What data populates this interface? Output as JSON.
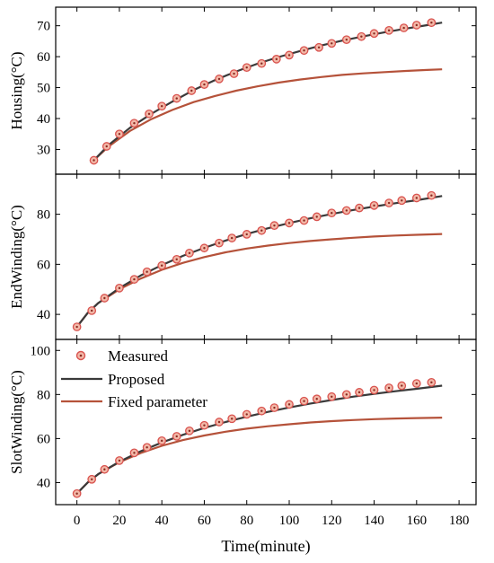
{
  "chart_data": {
    "type": "line",
    "xlabel": "Time(minute)",
    "x_ticks": [
      "0",
      "20",
      "40",
      "60",
      "80",
      "100",
      "120",
      "140",
      "160",
      "180"
    ],
    "xlim": [
      -10,
      188
    ],
    "colors": {
      "measured": "#d9534f",
      "measured_fill": "#f2b8a8",
      "proposed": "#3a3a3a",
      "fixed": "#b5523a"
    },
    "legend": {
      "placement": "top-left of bottom panel",
      "measured": "Measured",
      "proposed": "Proposed",
      "fixed": "Fixed parameter"
    },
    "panels": [
      {
        "ylabel": "Housing(°C)",
        "ylim": [
          22,
          76
        ],
        "y_ticks": [
          30,
          40,
          50,
          60,
          70
        ],
        "series": [
          {
            "name": "Measured",
            "kind": "scatter",
            "x": [
              8,
              14,
              20,
              27,
              34,
              40,
              47,
              54,
              60,
              67,
              74,
              80,
              87,
              94,
              100,
              107,
              114,
              120,
              127,
              134,
              140,
              147,
              154,
              160,
              167
            ],
            "y": [
              26.5,
              31,
              35,
              38.5,
              41.5,
              44,
              46.5,
              49,
              51,
              52.8,
              54.5,
              56.5,
              57.8,
              59.2,
              60.5,
              62,
              63,
              64.3,
              65.5,
              66.5,
              67.5,
              68.5,
              69.3,
              70.2,
              71
            ]
          },
          {
            "name": "Proposed",
            "kind": "line",
            "x": [
              8,
              15,
              25,
              35,
              45,
              55,
              65,
              75,
              85,
              95,
              105,
              115,
              125,
              135,
              145,
              155,
              165,
              172
            ],
            "y": [
              26.5,
              31.5,
              37,
              41.5,
              45.5,
              49.2,
              52.4,
              55.2,
              57.7,
              59.9,
              61.8,
              63.6,
              65.2,
              66.6,
              67.9,
              69.1,
              70.2,
              71
            ]
          },
          {
            "name": "Fixed parameter",
            "kind": "line",
            "x": [
              8,
              15,
              25,
              35,
              45,
              55,
              65,
              75,
              85,
              95,
              105,
              115,
              125,
              135,
              145,
              155,
              165,
              172
            ],
            "y": [
              26.5,
              31,
              36,
              39.8,
              42.8,
              45.3,
              47.3,
              49,
              50.4,
              51.6,
              52.6,
              53.4,
              54.1,
              54.6,
              55,
              55.4,
              55.7,
              55.9
            ]
          }
        ]
      },
      {
        "ylabel": "EndWinding(°C)",
        "ylim": [
          30,
          96
        ],
        "y_ticks": [
          40,
          60,
          80
        ],
        "series": [
          {
            "name": "Measured",
            "kind": "scatter",
            "x": [
              0,
              7,
              13,
              20,
              27,
              33,
              40,
              47,
              53,
              60,
              67,
              73,
              80,
              87,
              93,
              100,
              107,
              113,
              120,
              127,
              133,
              140,
              147,
              153,
              160,
              167
            ],
            "y": [
              35,
              41.5,
              46.5,
              50.5,
              54,
              57,
              59.5,
              62,
              64.5,
              66.5,
              68.5,
              70.5,
              72,
              73.5,
              75.5,
              76.5,
              77.5,
              79,
              80.5,
              81.5,
              82.5,
              83.5,
              84.5,
              85.5,
              86.5,
              87.5
            ]
          },
          {
            "name": "Proposed",
            "kind": "line",
            "x": [
              0,
              5,
              10,
              20,
              30,
              40,
              50,
              60,
              70,
              80,
              90,
              100,
              110,
              120,
              130,
              140,
              150,
              160,
              172
            ],
            "y": [
              35,
              40.5,
              44.5,
              50.5,
              55.5,
              59.7,
              63.4,
              66.6,
              69.5,
              72.1,
              74.4,
              76.5,
              78.4,
              80.1,
              81.7,
              83.1,
              84.4,
              85.6,
              87.3
            ]
          },
          {
            "name": "Fixed parameter",
            "kind": "line",
            "x": [
              0,
              5,
              10,
              20,
              30,
              40,
              50,
              60,
              70,
              80,
              90,
              100,
              110,
              120,
              130,
              140,
              150,
              160,
              172
            ],
            "y": [
              35,
              40.5,
              44.5,
              50,
              54.3,
              57.8,
              60.6,
              62.9,
              64.8,
              66.3,
              67.5,
              68.5,
              69.3,
              70,
              70.6,
              71.1,
              71.5,
              71.8,
              72.1
            ]
          }
        ]
      },
      {
        "ylabel": "SlotWinding(°C)",
        "ylim": [
          30,
          105
        ],
        "y_ticks": [
          40,
          60,
          80,
          100
        ],
        "series": [
          {
            "name": "Measured",
            "kind": "scatter",
            "x": [
              0,
              7,
              13,
              20,
              27,
              33,
              40,
              47,
              53,
              60,
              67,
              73,
              80,
              87,
              93,
              100,
              107,
              113,
              120,
              127,
              133,
              140,
              147,
              153,
              160,
              167
            ],
            "y": [
              35,
              41.5,
              46,
              50,
              53.5,
              56,
              59,
              61,
              63.5,
              66,
              67.5,
              69,
              71,
              72.5,
              74,
              75.5,
              77,
              78,
              79,
              80,
              81,
              82,
              83,
              84,
              85,
              85.5
            ]
          },
          {
            "name": "Proposed",
            "kind": "line",
            "x": [
              0,
              5,
              10,
              20,
              30,
              40,
              50,
              60,
              70,
              80,
              90,
              100,
              110,
              120,
              130,
              140,
              150,
              160,
              172
            ],
            "y": [
              35,
              40,
              43.8,
              49.5,
              54.2,
              58.2,
              61.7,
              64.8,
              67.5,
              69.9,
              72.1,
              74.1,
              75.9,
              77.5,
              79,
              80.3,
              81.5,
              82.6,
              84
            ]
          },
          {
            "name": "Fixed parameter",
            "kind": "line",
            "x": [
              0,
              5,
              10,
              20,
              30,
              40,
              50,
              60,
              70,
              80,
              90,
              100,
              110,
              120,
              130,
              140,
              150,
              160,
              172
            ],
            "y": [
              35,
              40,
              43.8,
              49.3,
              53.4,
              56.7,
              59.3,
              61.4,
              63.1,
              64.5,
              65.6,
              66.5,
              67.3,
              67.9,
              68.4,
              68.8,
              69.1,
              69.3,
              69.5
            ]
          }
        ]
      }
    ]
  }
}
